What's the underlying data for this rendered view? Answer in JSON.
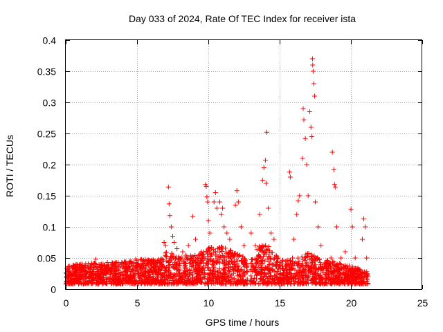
{
  "chart_data": {
    "type": "scatter",
    "title": "Day 033 of 2024, Rate Of TEC Index for receiver ista",
    "xlabel": "GPS time / hours",
    "ylabel": "ROTI / TECUs",
    "xlim": [
      0,
      25
    ],
    "ylim": [
      0,
      0.4
    ],
    "xticks": [
      0,
      5,
      10,
      15,
      20,
      25
    ],
    "xtick_labels": [
      "0",
      "5",
      "10",
      "15",
      "20",
      "25"
    ],
    "yticks": [
      0,
      0.05,
      0.1,
      0.15,
      0.2,
      0.25,
      0.3,
      0.35,
      0.4
    ],
    "ytick_labels": [
      "0",
      "0.05",
      "0.1",
      "0.15",
      "0.2",
      "0.25",
      "0.3",
      "0.35",
      "0.4"
    ],
    "grid": true,
    "marker": "plus",
    "marker_color": "#ff0000",
    "data_range_x": [
      0,
      21.2
    ],
    "series": [
      {
        "points": [
          [
            0.2,
            0.036
          ],
          [
            0.5,
            0.028
          ],
          [
            1.0,
            0.033
          ],
          [
            1.5,
            0.035
          ],
          [
            2.1,
            0.048
          ],
          [
            2.5,
            0.04
          ],
          [
            3.0,
            0.038
          ],
          [
            3.5,
            0.036
          ],
          [
            4.0,
            0.042
          ],
          [
            4.5,
            0.045
          ],
          [
            4.9,
            0.048
          ],
          [
            5.5,
            0.044
          ],
          [
            6.0,
            0.04
          ],
          [
            6.5,
            0.048
          ],
          [
            6.9,
            0.075
          ],
          [
            7.0,
            0.07
          ],
          [
            7.2,
            0.164
          ],
          [
            7.25,
            0.137
          ],
          [
            7.3,
            0.118
          ],
          [
            7.4,
            0.1
          ],
          [
            7.5,
            0.085
          ],
          [
            7.6,
            0.075
          ],
          [
            7.8,
            0.065
          ],
          [
            8.2,
            0.06
          ],
          [
            8.6,
            0.07
          ],
          [
            8.9,
            0.117
          ],
          [
            9.1,
            0.08
          ],
          [
            9.5,
            0.06
          ],
          [
            9.8,
            0.168
          ],
          [
            9.85,
            0.165
          ],
          [
            9.9,
            0.148
          ],
          [
            9.95,
            0.14
          ],
          [
            10.0,
            0.11
          ],
          [
            10.1,
            0.09
          ],
          [
            10.4,
            0.14
          ],
          [
            10.5,
            0.155
          ],
          [
            10.6,
            0.13
          ],
          [
            10.8,
            0.14
          ],
          [
            10.9,
            0.12
          ],
          [
            11.0,
            0.13
          ],
          [
            11.1,
            0.1
          ],
          [
            11.3,
            0.09
          ],
          [
            11.5,
            0.08
          ],
          [
            11.9,
            0.135
          ],
          [
            12.0,
            0.158
          ],
          [
            12.1,
            0.14
          ],
          [
            12.3,
            0.1
          ],
          [
            12.5,
            0.07
          ],
          [
            12.7,
            0.04
          ],
          [
            13.0,
            0.09
          ],
          [
            13.3,
            0.07
          ],
          [
            13.6,
            0.12
          ],
          [
            13.8,
            0.175
          ],
          [
            13.9,
            0.195
          ],
          [
            14.0,
            0.207
          ],
          [
            14.05,
            0.17
          ],
          [
            14.1,
            0.252
          ],
          [
            14.2,
            0.13
          ],
          [
            14.4,
            0.09
          ],
          [
            14.6,
            0.08
          ],
          [
            14.9,
            0.05
          ],
          [
            15.5,
            0.045
          ],
          [
            15.7,
            0.188
          ],
          [
            15.75,
            0.18
          ],
          [
            15.9,
            0.05
          ],
          [
            16.0,
            0.08
          ],
          [
            16.2,
            0.12
          ],
          [
            16.3,
            0.142
          ],
          [
            16.4,
            0.15
          ],
          [
            16.6,
            0.21
          ],
          [
            16.65,
            0.29
          ],
          [
            16.7,
            0.272
          ],
          [
            16.8,
            0.242
          ],
          [
            16.9,
            0.2
          ],
          [
            17.0,
            0.15
          ],
          [
            17.1,
            0.285
          ],
          [
            17.2,
            0.26
          ],
          [
            17.25,
            0.245
          ],
          [
            17.3,
            0.37
          ],
          [
            17.32,
            0.36
          ],
          [
            17.35,
            0.35
          ],
          [
            17.4,
            0.33
          ],
          [
            17.45,
            0.31
          ],
          [
            17.5,
            0.14
          ],
          [
            17.7,
            0.1
          ],
          [
            17.9,
            0.07
          ],
          [
            18.2,
            0.04
          ],
          [
            18.6,
            0.05
          ],
          [
            18.7,
            0.22
          ],
          [
            18.8,
            0.192
          ],
          [
            18.85,
            0.168
          ],
          [
            18.9,
            0.164
          ],
          [
            19.0,
            0.1
          ],
          [
            19.3,
            0.05
          ],
          [
            19.6,
            0.06
          ],
          [
            20.0,
            0.128
          ],
          [
            20.1,
            0.1
          ],
          [
            20.3,
            0.05
          ],
          [
            20.8,
            0.08
          ],
          [
            20.9,
            0.113
          ],
          [
            21.0,
            0.1
          ],
          [
            21.1,
            0.05
          ],
          [
            21.2,
            0.02
          ]
        ]
      }
    ],
    "noise_envelope": [
      [
        0,
        0.03
      ],
      [
        2,
        0.035
      ],
      [
        4,
        0.035
      ],
      [
        5,
        0.04
      ],
      [
        6.5,
        0.04
      ],
      [
        7,
        0.055
      ],
      [
        8,
        0.045
      ],
      [
        9.5,
        0.05
      ],
      [
        10,
        0.06
      ],
      [
        11,
        0.06
      ],
      [
        12.5,
        0.045
      ],
      [
        12.8,
        0.03
      ],
      [
        13.5,
        0.06
      ],
      [
        14,
        0.07
      ],
      [
        15,
        0.04
      ],
      [
        16,
        0.04
      ],
      [
        17,
        0.05
      ],
      [
        18,
        0.04
      ],
      [
        19,
        0.035
      ],
      [
        20,
        0.03
      ],
      [
        21.2,
        0.02
      ]
    ]
  }
}
